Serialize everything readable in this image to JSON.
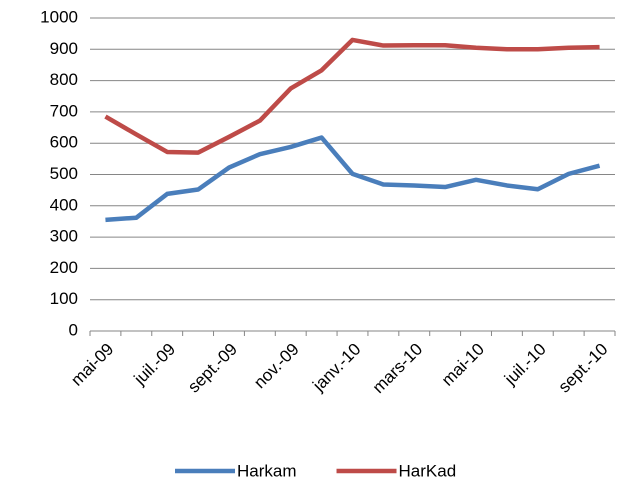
{
  "chart_data": {
    "type": "line",
    "categories": [
      "mai-09",
      null,
      "juil.-09",
      null,
      "sept.-09",
      null,
      "nov.-09",
      null,
      "janv.-10",
      null,
      "mars-10",
      null,
      "mai-10",
      null,
      "juil.-10",
      null,
      "sept.-10"
    ],
    "series": [
      {
        "name": "Harkam",
        "color": "#4a7ebb",
        "values": [
          355,
          362,
          438,
          452,
          522,
          565,
          588,
          618,
          502,
          468,
          465,
          460,
          483,
          465,
          453,
          502,
          528
        ]
      },
      {
        "name": "HarKad",
        "color": "#be4b48",
        "values": [
          685,
          628,
          572,
          570,
          620,
          672,
          775,
          833,
          930,
          912,
          913,
          913,
          905,
          900,
          900,
          905,
          907
        ]
      }
    ],
    "ylim": [
      0,
      1000
    ],
    "yticks": [
      0,
      100,
      200,
      300,
      400,
      500,
      600,
      700,
      800,
      900,
      1000
    ],
    "grid": true,
    "legend": "bottom"
  }
}
